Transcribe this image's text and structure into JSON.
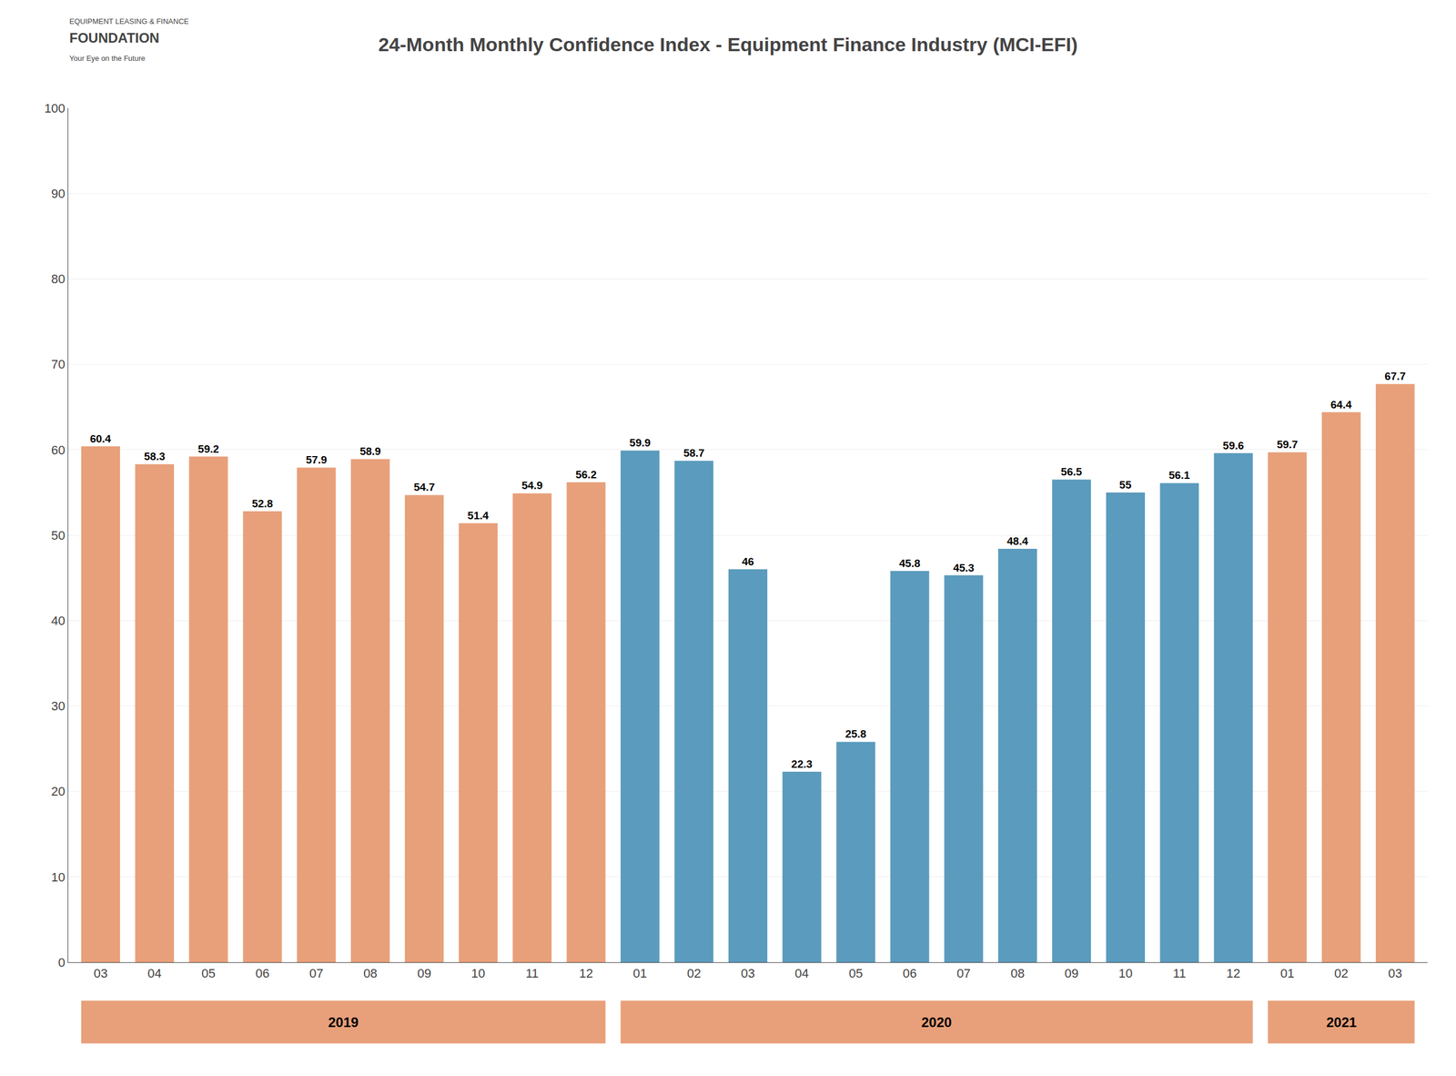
{
  "chart_data": {
    "type": "bar",
    "title": "24-Month Monthly Confidence Index - Equipment Finance Industry (MCI-EFI)",
    "categories": [
      "03",
      "04",
      "05",
      "06",
      "07",
      "08",
      "09",
      "10",
      "11",
      "12",
      "01",
      "02",
      "03",
      "04",
      "05",
      "06",
      "07",
      "08",
      "09",
      "10",
      "11",
      "12",
      "01",
      "02",
      "03"
    ],
    "values": [
      60.4,
      58.3,
      59.2,
      52.8,
      57.9,
      58.9,
      54.7,
      51.4,
      54.9,
      56.2,
      59.9,
      58.7,
      46.0,
      22.3,
      25.8,
      45.8,
      45.3,
      48.4,
      56.5,
      55.0,
      56.1,
      59.6,
      59.7,
      64.4,
      67.7
    ],
    "value_labels": [
      "60.4",
      "58.3",
      "59.2",
      "52.8",
      "57.9",
      "58.9",
      "54.7",
      "51.4",
      "54.9",
      "56.2",
      "59.9",
      "58.7",
      "46",
      "22.3",
      "25.8",
      "45.8",
      "45.3",
      "48.4",
      "56.5",
      "55",
      "56.1",
      "59.6",
      "59.7",
      "64.4",
      "67.7"
    ],
    "colors": [
      "#E8A07A",
      "#E8A07A",
      "#E8A07A",
      "#E8A07A",
      "#E8A07A",
      "#E8A07A",
      "#E8A07A",
      "#E8A07A",
      "#E8A07A",
      "#E8A07A",
      "#5B9BBD",
      "#5B9BBD",
      "#5B9BBD",
      "#5B9BBD",
      "#5B9BBD",
      "#5B9BBD",
      "#5B9BBD",
      "#5B9BBD",
      "#5B9BBD",
      "#5B9BBD",
      "#5B9BBD",
      "#5B9BBD",
      "#E8A07A",
      "#E8A07A",
      "#E8A07A"
    ],
    "data_labels": true,
    "ylim": [
      0,
      100
    ],
    "yticks": [
      0,
      10,
      20,
      30,
      40,
      50,
      60,
      70,
      80,
      90,
      100
    ],
    "grid": true,
    "annotations": [
      {
        "text": "2019",
        "start": 0,
        "end": 9,
        "color": "#E8A07A"
      },
      {
        "text": "2020",
        "start": 10,
        "end": 21,
        "color": "#E8A07A"
      },
      {
        "text": "2021",
        "start": 22,
        "end": 24,
        "color": "#E8A07A"
      },
      {
        "text": "EQUIPMENT LEASING & FINANCE"
      },
      {
        "text": "FOUNDATION"
      },
      {
        "text": "Your Eye on the Future"
      }
    ]
  }
}
